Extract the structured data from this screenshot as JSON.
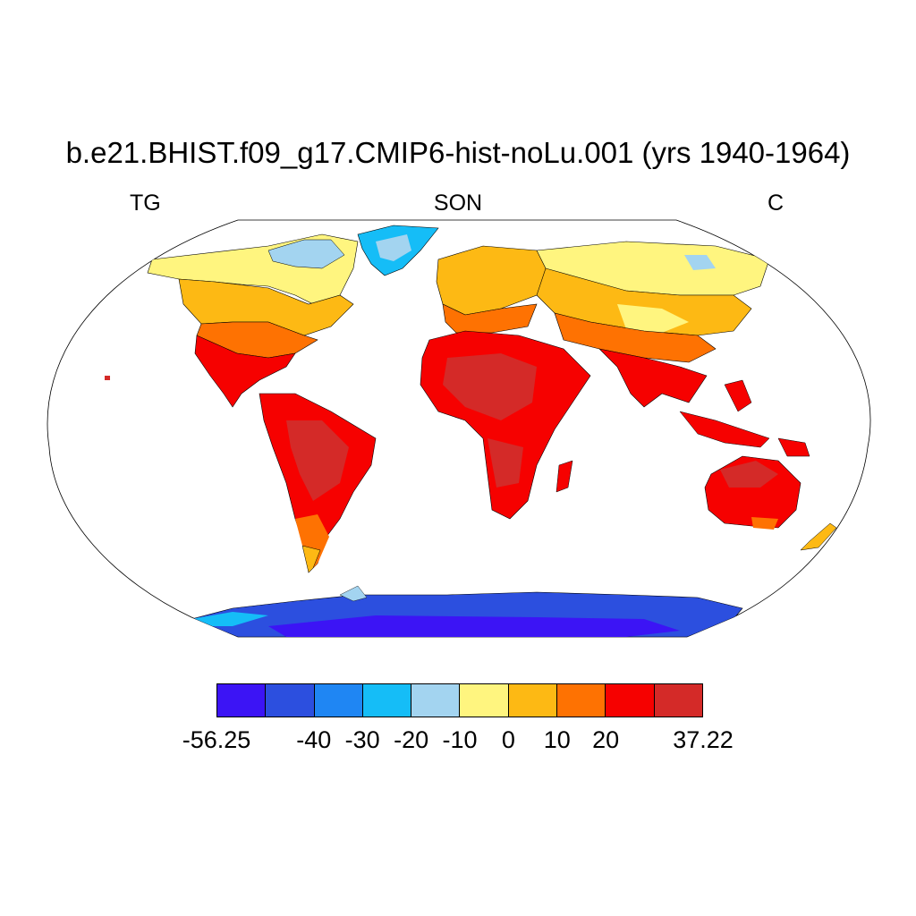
{
  "title": "b.e21.BHIST.f09_g17.CMIP6-hist-noLu.001 (yrs 1940-1964)",
  "subtitle_left": "TG",
  "subtitle_center": "SON",
  "subtitle_right": "C",
  "colorbar": {
    "colors": [
      "#3c14f5",
      "#2c4fdf",
      "#1f86f3",
      "#15bdf7",
      "#a3d4f0",
      "#fff57f",
      "#fdb914",
      "#fe7202",
      "#f60100",
      "#d42a28"
    ],
    "labels": [
      "-56.25",
      "-40",
      "-30",
      "-20",
      "-10",
      "0",
      "10",
      "20",
      "37.22"
    ],
    "label_positions": [
      0,
      2,
      3,
      4,
      5,
      6,
      7,
      8,
      10
    ]
  }
}
